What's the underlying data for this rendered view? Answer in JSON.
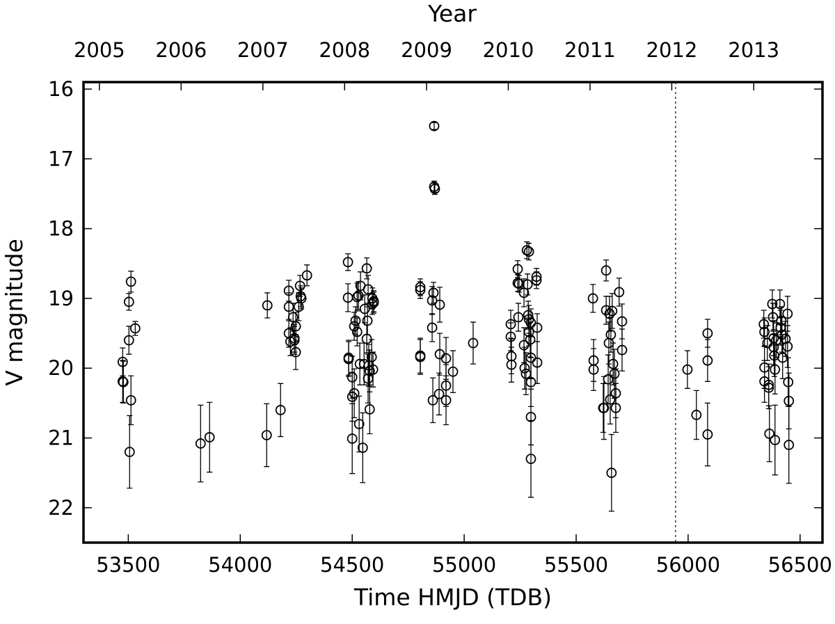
{
  "chart_data": {
    "type": "scatter",
    "x_label": "Time HMJD (TDB)",
    "y_label": "V magnitude",
    "x2_label": "Year",
    "xlim": [
      53300,
      56600
    ],
    "ylim": [
      15.9,
      22.5
    ],
    "y_inverted": true,
    "xticks": [
      53500,
      54000,
      54500,
      55000,
      55500,
      56000,
      56500
    ],
    "yticks": [
      16,
      17,
      18,
      19,
      20,
      21,
      22
    ],
    "x2ticks": [
      {
        "value": 53371,
        "label": "2005"
      },
      {
        "value": 53736,
        "label": "2006"
      },
      {
        "value": 54101,
        "label": "2007"
      },
      {
        "value": 54466,
        "label": "2008"
      },
      {
        "value": 54832,
        "label": "2009"
      },
      {
        "value": 55197,
        "label": "2010"
      },
      {
        "value": 55562,
        "label": "2011"
      },
      {
        "value": 55927,
        "label": "2012"
      },
      {
        "value": 56293,
        "label": "2013"
      }
    ],
    "vline": 55944,
    "series": [
      {
        "color": "#000000",
        "x": [
          53475,
          53475,
          53478,
          53503,
          53503,
          53512,
          53512,
          53506,
          53531,
          53823,
          53863,
          54121,
          54118,
          54180,
          54217,
          54217,
          54217,
          54224,
          54236,
          54242,
          54248,
          54248,
          54242,
          54261,
          54267,
          54270,
          54273,
          54298,
          54481,
          54481,
          54484,
          54484,
          54500,
          54500,
          54500,
          54509,
          54509,
          54515,
          54522,
          54522,
          54528,
          54534,
          54537,
          54531,
          54553,
          54547,
          54556,
          54565,
          54568,
          54565,
          54571,
          54571,
          54574,
          54578,
          54578,
          54587,
          54590,
          54590,
          54593,
          54596,
          54596,
          54804,
          54804,
          54804,
          54804,
          54866,
          54866,
          54869,
          54857,
          54863,
          54857,
          54860,
          54891,
          54891,
          54888,
          54919,
          54919,
          54919,
          54950,
          55040,
          55208,
          55208,
          55211,
          55211,
          55239,
          55239,
          55245,
          55242,
          55267,
          55267,
          55270,
          55276,
          55283,
          55280,
          55289,
          55286,
          55289,
          55289,
          55295,
          55298,
          55298,
          55298,
          55298,
          55298,
          55323,
          55323,
          55326,
          55326,
          55575,
          55578,
          55578,
          55621,
          55624,
          55634,
          55634,
          55643,
          55646,
          55649,
          55652,
          55655,
          55658,
          55661,
          55665,
          55671,
          55677,
          55677,
          55692,
          55705,
          55705,
          55997,
          56037,
          56087,
          56087,
          56087,
          56338,
          56341,
          56341,
          56341,
          56354,
          56360,
          56360,
          56363,
          56376,
          56379,
          56382,
          56382,
          56385,
          56388,
          56388,
          56394,
          56410,
          56413,
          56416,
          56419,
          56422,
          56435,
          56444,
          56444,
          56447,
          56450,
          56450
        ],
        "values": [
          19.91,
          20.19,
          20.2,
          19.05,
          19.6,
          18.76,
          20.46,
          21.2,
          19.43,
          21.08,
          20.99,
          19.1,
          20.96,
          20.6,
          18.89,
          19.12,
          19.5,
          19.62,
          19.27,
          19.57,
          19.4,
          19.77,
          19.6,
          19.12,
          18.82,
          18.97,
          19.0,
          18.67,
          18.48,
          18.99,
          19.85,
          19.87,
          20.13,
          20.41,
          21.01,
          20.36,
          19.4,
          19.32,
          18.98,
          19.48,
          18.96,
          19.94,
          18.82,
          20.8,
          19.94,
          21.14,
          19.15,
          18.57,
          19.32,
          19.58,
          20.15,
          18.87,
          19.96,
          20.04,
          20.59,
          19.84,
          19.0,
          19.08,
          20.02,
          19.04,
          19.06,
          18.84,
          18.88,
          19.82,
          19.84,
          16.53,
          17.4,
          17.43,
          19.42,
          18.92,
          19.03,
          20.46,
          19.09,
          19.8,
          20.37,
          19.86,
          20.25,
          20.46,
          20.05,
          19.64,
          19.37,
          19.55,
          19.83,
          19.95,
          18.58,
          18.78,
          18.79,
          19.27,
          18.92,
          19.67,
          20.0,
          20.08,
          18.8,
          18.31,
          18.33,
          19.24,
          19.3,
          19.48,
          19.59,
          19.35,
          19.85,
          20.2,
          20.7,
          21.3,
          18.69,
          18.74,
          19.42,
          19.92,
          19.0,
          19.89,
          20.02,
          20.57,
          20.57,
          18.6,
          19.17,
          20.16,
          19.64,
          19.22,
          20.45,
          19.52,
          21.5,
          19.18,
          19.94,
          20.08,
          20.36,
          20.57,
          18.91,
          19.33,
          19.74,
          20.02,
          20.67,
          19.5,
          19.89,
          20.95,
          19.37,
          19.48,
          19.99,
          20.19,
          19.64,
          20.24,
          20.28,
          20.94,
          19.08,
          19.27,
          19.57,
          19.7,
          19.82,
          20.02,
          21.03,
          19.6,
          19.08,
          19.42,
          19.32,
          19.52,
          19.85,
          19.58,
          19.22,
          19.69,
          20.2,
          20.47,
          21.1
        ],
        "errors": [
          0.2,
          0.3,
          0.3,
          0.12,
          0.2,
          0.15,
          0.35,
          0.52,
          0.1,
          0.55,
          0.5,
          0.18,
          0.45,
          0.38,
          0.15,
          0.2,
          0.2,
          0.2,
          0.2,
          0.2,
          0.2,
          0.25,
          0.2,
          0.2,
          0.15,
          0.15,
          0.15,
          0.15,
          0.12,
          0.2,
          0.25,
          0.25,
          0.3,
          0.35,
          0.5,
          0.35,
          0.2,
          0.2,
          0.2,
          0.2,
          0.2,
          0.3,
          0.2,
          0.4,
          0.3,
          0.5,
          0.2,
          0.15,
          0.2,
          0.2,
          0.35,
          0.2,
          0.3,
          0.3,
          0.35,
          0.25,
          0.15,
          0.15,
          0.25,
          0.15,
          0.15,
          0.12,
          0.12,
          0.25,
          0.25,
          0.05,
          0.08,
          0.08,
          0.2,
          0.15,
          0.2,
          0.32,
          0.25,
          0.3,
          0.3,
          0.3,
          0.3,
          0.35,
          0.3,
          0.3,
          0.2,
          0.2,
          0.25,
          0.25,
          0.12,
          0.12,
          0.12,
          0.2,
          0.2,
          0.25,
          0.3,
          0.3,
          0.15,
          0.12,
          0.12,
          0.2,
          0.2,
          0.2,
          0.25,
          0.2,
          0.3,
          0.35,
          0.4,
          0.55,
          0.12,
          0.12,
          0.2,
          0.3,
          0.2,
          0.3,
          0.3,
          0.35,
          0.45,
          0.15,
          0.2,
          0.35,
          0.3,
          0.25,
          0.35,
          0.25,
          0.55,
          0.25,
          0.3,
          0.35,
          0.35,
          0.35,
          0.2,
          0.25,
          0.3,
          0.27,
          0.35,
          0.2,
          0.3,
          0.45,
          0.2,
          0.2,
          0.3,
          0.3,
          0.25,
          0.3,
          0.3,
          0.4,
          0.2,
          0.2,
          0.25,
          0.25,
          0.3,
          0.35,
          0.5,
          0.25,
          0.2,
          0.25,
          0.2,
          0.25,
          0.3,
          0.25,
          0.25,
          0.3,
          0.35,
          0.4,
          0.55
        ]
      }
    ]
  }
}
